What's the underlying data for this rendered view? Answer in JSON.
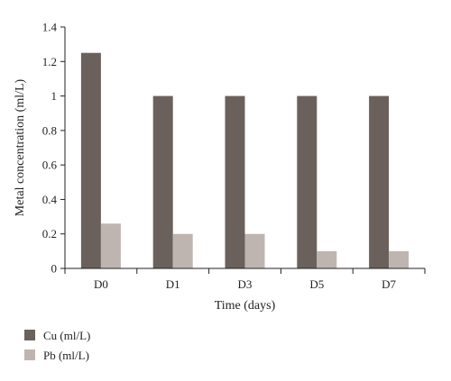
{
  "chart_data": {
    "type": "bar",
    "categories": [
      "D0",
      "D1",
      "D3",
      "D5",
      "D7"
    ],
    "series": [
      {
        "name": "Cu (ml/L)",
        "values": [
          1.25,
          1.0,
          1.0,
          1.0,
          1.0
        ],
        "color": "#6b615c"
      },
      {
        "name": "Pb (ml/L)",
        "values": [
          0.26,
          0.2,
          0.2,
          0.1,
          0.1
        ],
        "color": "#bfb5b0"
      }
    ],
    "xlabel": "Time (days)",
    "ylabel": "Metal concentration (ml/L)",
    "ylim": [
      0,
      1.4
    ],
    "yticks": [
      "0",
      "0.2",
      "0.4",
      "0.6",
      "0.8",
      "1",
      "1.2",
      "1.4"
    ],
    "grid": false,
    "legend": "bottom-left"
  }
}
